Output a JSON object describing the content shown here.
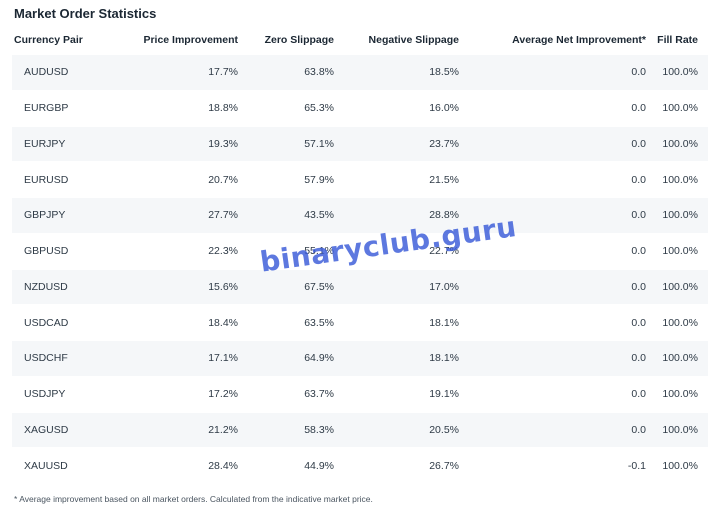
{
  "title": "Market Order Statistics",
  "columns": [
    "Currency Pair",
    "Price Improvement",
    "Zero Slippage",
    "Negative Slippage",
    "Average Net Improvement*",
    "Fill Rate"
  ],
  "rows": [
    {
      "pair": "AUDUSD",
      "price_improvement": "17.7%",
      "zero_slippage": "63.8%",
      "negative_slippage": "18.5%",
      "avg_net_improvement": "0.0",
      "fill_rate": "100.0%"
    },
    {
      "pair": "EURGBP",
      "price_improvement": "18.8%",
      "zero_slippage": "65.3%",
      "negative_slippage": "16.0%",
      "avg_net_improvement": "0.0",
      "fill_rate": "100.0%"
    },
    {
      "pair": "EURJPY",
      "price_improvement": "19.3%",
      "zero_slippage": "57.1%",
      "negative_slippage": "23.7%",
      "avg_net_improvement": "0.0",
      "fill_rate": "100.0%"
    },
    {
      "pair": "EURUSD",
      "price_improvement": "20.7%",
      "zero_slippage": "57.9%",
      "negative_slippage": "21.5%",
      "avg_net_improvement": "0.0",
      "fill_rate": "100.0%"
    },
    {
      "pair": "GBPJPY",
      "price_improvement": "27.7%",
      "zero_slippage": "43.5%",
      "negative_slippage": "28.8%",
      "avg_net_improvement": "0.0",
      "fill_rate": "100.0%"
    },
    {
      "pair": "GBPUSD",
      "price_improvement": "22.3%",
      "zero_slippage": "55.1%",
      "negative_slippage": "22.7%",
      "avg_net_improvement": "0.0",
      "fill_rate": "100.0%"
    },
    {
      "pair": "NZDUSD",
      "price_improvement": "15.6%",
      "zero_slippage": "67.5%",
      "negative_slippage": "17.0%",
      "avg_net_improvement": "0.0",
      "fill_rate": "100.0%"
    },
    {
      "pair": "USDCAD",
      "price_improvement": "18.4%",
      "zero_slippage": "63.5%",
      "negative_slippage": "18.1%",
      "avg_net_improvement": "0.0",
      "fill_rate": "100.0%"
    },
    {
      "pair": "USDCHF",
      "price_improvement": "17.1%",
      "zero_slippage": "64.9%",
      "negative_slippage": "18.1%",
      "avg_net_improvement": "0.0",
      "fill_rate": "100.0%"
    },
    {
      "pair": "USDJPY",
      "price_improvement": "17.2%",
      "zero_slippage": "63.7%",
      "negative_slippage": "19.1%",
      "avg_net_improvement": "0.0",
      "fill_rate": "100.0%"
    },
    {
      "pair": "XAGUSD",
      "price_improvement": "21.2%",
      "zero_slippage": "58.3%",
      "negative_slippage": "20.5%",
      "avg_net_improvement": "0.0",
      "fill_rate": "100.0%"
    },
    {
      "pair": "XAUUSD",
      "price_improvement": "28.4%",
      "zero_slippage": "44.9%",
      "negative_slippage": "26.7%",
      "avg_net_improvement": "-0.1",
      "fill_rate": "100.0%"
    }
  ],
  "footnote": "* Average improvement based on all market orders. Calculated from the indicative market price.",
  "watermark": "binaryclub.guru",
  "colors": {
    "title": "#1b2733",
    "stripe": "#f5f7f9",
    "watermark": "#3a5bd9"
  }
}
